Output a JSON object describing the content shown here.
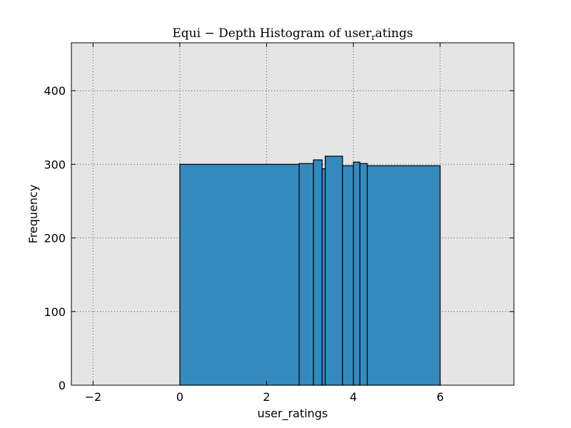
{
  "chart_data": {
    "type": "bar",
    "title": "Equi − Depth Histogram of user_ratings",
    "title_main": "Equi − Depth Histogram of user",
    "title_sub": "r",
    "title_tail": "atings",
    "xlabel": "user_ratings",
    "ylabel": "Frequency",
    "xlim": [
      -2.5,
      7.7
    ],
    "ylim": [
      0,
      465
    ],
    "xticks": [
      -2,
      0,
      2,
      4,
      6
    ],
    "xtick_labels": [
      "−2",
      "0",
      "2",
      "4",
      "6"
    ],
    "yticks": [
      0,
      100,
      200,
      300,
      400
    ],
    "ytick_labels": [
      "0",
      "100",
      "200",
      "300",
      "400"
    ],
    "grid": true,
    "bars": [
      {
        "x0": 0.0,
        "x1": 2.75,
        "value": 300
      },
      {
        "x0": 2.75,
        "x1": 3.08,
        "value": 301
      },
      {
        "x0": 3.08,
        "x1": 3.28,
        "value": 306
      },
      {
        "x0": 3.28,
        "x1": 3.35,
        "value": 294
      },
      {
        "x0": 3.35,
        "x1": 3.75,
        "value": 311
      },
      {
        "x0": 3.75,
        "x1": 4.0,
        "value": 298
      },
      {
        "x0": 4.0,
        "x1": 4.15,
        "value": 303
      },
      {
        "x0": 4.15,
        "x1": 4.32,
        "value": 301
      },
      {
        "x0": 4.32,
        "x1": 6.0,
        "value": 298
      }
    ]
  },
  "colors": {
    "plot_background": "#e5e5e5",
    "bar_fill": "#348abd",
    "bar_edge": "#000000",
    "grid": "#555555"
  }
}
